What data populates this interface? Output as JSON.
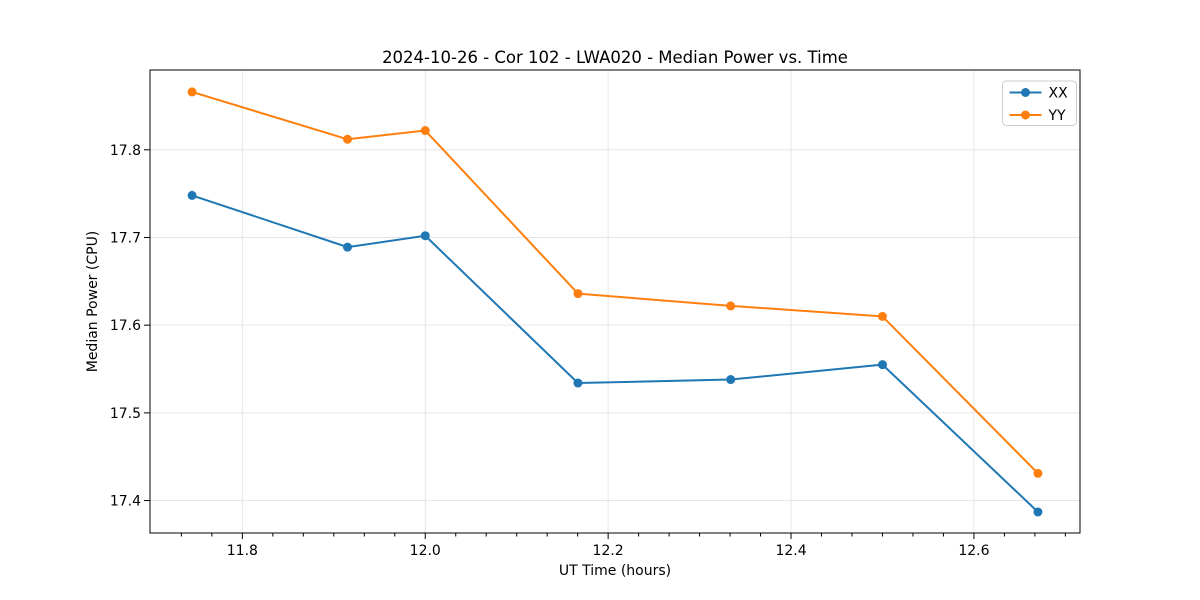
{
  "chart_data": {
    "type": "line",
    "title": "2024-10-26 - Cor 102 - LWA020 - Median Power vs. Time",
    "xlabel": "UT Time (hours)",
    "ylabel": "Median Power (CPU)",
    "x": [
      11.745,
      11.915,
      12.0,
      12.167,
      12.334,
      12.5,
      12.67
    ],
    "series": [
      {
        "name": "XX",
        "color": "#1f77b4",
        "values": [
          17.748,
          17.689,
          17.702,
          17.534,
          17.538,
          17.555,
          17.387
        ]
      },
      {
        "name": "YY",
        "color": "#ff7f0e",
        "values": [
          17.866,
          17.812,
          17.822,
          17.636,
          17.622,
          17.61,
          17.431
        ]
      }
    ],
    "xlim": [
      11.699,
      12.716
    ],
    "ylim": [
      17.363,
      17.891
    ],
    "xticks": [
      11.8,
      12.0,
      12.2,
      12.4,
      12.6
    ],
    "xtick_labels": [
      "11.8",
      "12.0",
      "12.2",
      "12.4",
      "12.6"
    ],
    "yticks": [
      17.4,
      17.5,
      17.6,
      17.7,
      17.8
    ],
    "ytick_labels": [
      "17.4",
      "17.5",
      "17.6",
      "17.7",
      "17.8"
    ],
    "x_minor_divisions": 6,
    "grid": true,
    "grid_color": "#e6e6e6",
    "axis_color": "#000000",
    "background": "#ffffff",
    "marker": "o",
    "legend": {
      "position": "upper right",
      "entries": [
        "XX",
        "YY"
      ],
      "border_color": "#cccccc"
    }
  }
}
